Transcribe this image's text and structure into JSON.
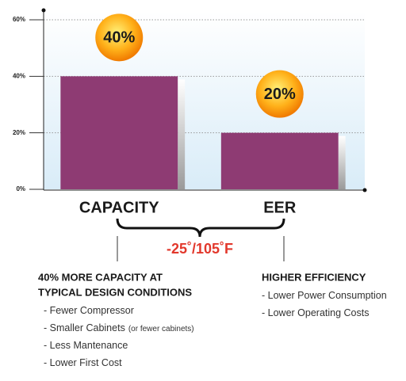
{
  "chart_data": {
    "type": "bar",
    "categories": [
      "CAPACITY",
      "EER"
    ],
    "values": [
      40,
      20
    ],
    "value_labels": [
      "40%",
      "20%"
    ],
    "color": "#8e3b73",
    "ylim": [
      0,
      63
    ],
    "yticks": [
      {
        "value": 0,
        "label": "0%"
      },
      {
        "value": 20,
        "label": "20%"
      },
      {
        "value": 40,
        "label": "40%"
      },
      {
        "value": 60,
        "label": "60%"
      }
    ],
    "grid": true,
    "annotation": "-25˚/105˚F"
  },
  "notes": [
    {
      "heading": [
        "40% MORE CAPACITY AT",
        "TYPICAL DESIGN CONDITIONS"
      ],
      "items": [
        {
          "text": "- Fewer Compressor"
        },
        {
          "text": "- Smaller Cabinets",
          "suffix": "(or fewer cabinets)"
        },
        {
          "text": "- Less Mantenance"
        },
        {
          "text": "- Lower First Cost"
        }
      ]
    },
    {
      "heading": [
        "HIGHER EFFICIENCY"
      ],
      "items": [
        {
          "text": "- Lower Power Consumption"
        },
        {
          "text": "- Lower Operating Costs"
        }
      ]
    }
  ]
}
